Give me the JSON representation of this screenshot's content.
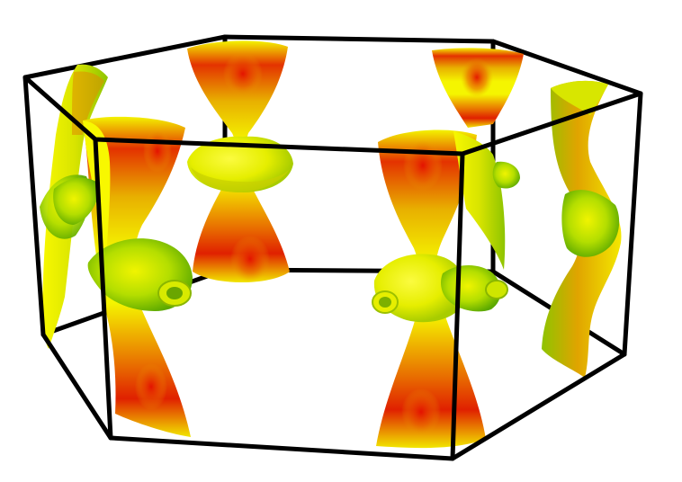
{
  "figure": {
    "kind": "3D Fermi surface inside a hexagonal Brillouin zone",
    "background": "#ffffff",
    "frame_color": "#000000",
    "surface_colors": {
      "low": "#79c800",
      "mid_low": "#c8ea00",
      "mid": "#f5f500",
      "mid_high": "#e8a500",
      "high": "#e81e00"
    },
    "components": [
      "center-hourglass",
      "front-right-hourglass",
      "front-left-hourglass",
      "back-left-sheet",
      "back-right-hourglass",
      "right-sheet"
    ]
  }
}
